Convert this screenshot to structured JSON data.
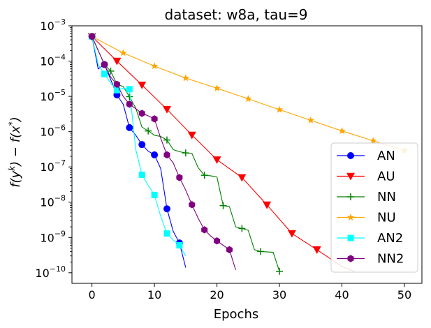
{
  "chart_data": {
    "type": "line",
    "title": "dataset: w8a, tau=9",
    "xlabel": "Epochs",
    "ylabel": "f(y^k) − f(x*)",
    "ylabel_parts": {
      "base": "f(y",
      "sup1": "k",
      "mid": ") − f(x",
      "sup2": "*",
      "end": ")"
    },
    "xlim": [
      -3.2,
      52.8
    ],
    "ylim_log10": [
      -10.3,
      -3.0
    ],
    "yscale": "log",
    "xticks": [
      0,
      10,
      20,
      30,
      40,
      50
    ],
    "xtick_labels": [
      "0",
      "10",
      "20",
      "30",
      "40",
      "50"
    ],
    "yticks_exp": [
      -10,
      -9,
      -8,
      -7,
      -6,
      -5,
      -4,
      -3
    ],
    "ytick_labels": [
      "10",
      "10",
      "10",
      "10",
      "10",
      "10",
      "10",
      "10"
    ],
    "ytick_exponents": [
      "−10",
      "−9",
      "−8",
      "−7",
      "−6",
      "−5",
      "−4",
      "−3"
    ],
    "legend_position": "lower right",
    "series": [
      {
        "name": "AN",
        "color": "#0000ff",
        "marker": "circle",
        "x": [
          0,
          1,
          2,
          3,
          4,
          5,
          6,
          7,
          8,
          9,
          10,
          11,
          12,
          13,
          14,
          15
        ],
        "y": [
          0.0005,
          6e-05,
          8e-05,
          3e-05,
          1.1e-05,
          6e-06,
          1.3e-06,
          8e-07,
          4.3e-07,
          2.8e-07,
          2.2e-07,
          9e-08,
          6.5e-09,
          1.5e-09,
          7e-10,
          1.4e-10
        ],
        "marker_idx": [
          0,
          2,
          4,
          6,
          8,
          10,
          12,
          14
        ]
      },
      {
        "name": "AU",
        "color": "#ff0000",
        "marker": "triangle-down",
        "x": [
          0,
          4,
          8,
          12,
          16,
          20,
          24,
          28,
          32,
          36,
          40,
          42
        ],
        "y": [
          0.0005,
          0.0001,
          2.1e-05,
          4.3e-06,
          8e-07,
          1.6e-07,
          5e-08,
          8.4e-09,
          1.3e-09,
          4.5e-10,
          1.5e-10,
          1.1e-10
        ],
        "marker_idx": [
          0,
          1,
          2,
          3,
          4,
          5,
          6,
          7,
          8,
          9
        ]
      },
      {
        "name": "NN",
        "color": "#008000",
        "marker": "plus",
        "x": [
          0,
          1,
          2,
          3,
          4,
          5,
          6,
          7,
          8,
          9,
          10,
          11,
          12,
          13,
          14,
          15,
          16,
          17,
          18,
          19,
          20,
          21,
          22,
          23,
          24,
          25,
          26,
          27,
          28,
          29,
          30
        ],
        "y": [
          0.0005,
          0.0002,
          8e-05,
          5.2e-05,
          2.2e-05,
          1.9e-05,
          9.8e-06,
          4.7e-06,
          1.35e-06,
          1.05e-06,
          7.9e-07,
          7.3e-07,
          5.8e-07,
          3.1e-07,
          2.7e-07,
          2.5e-07,
          2.4e-07,
          9.5e-08,
          5.8e-08,
          5.6e-08,
          5.2e-08,
          8e-09,
          7.5e-09,
          2e-09,
          1.8e-09,
          1.6e-09,
          4.5e-10,
          4e-10,
          3.9e-10,
          3.8e-10,
          1.1e-10
        ],
        "marker_idx": [
          0,
          3,
          6,
          9,
          12,
          15,
          18,
          21,
          24,
          27,
          30
        ]
      },
      {
        "name": "NU",
        "color": "#ffa500",
        "marker": "star",
        "x": [
          0,
          5,
          10,
          15,
          20,
          25,
          30,
          35,
          40,
          45,
          50
        ],
        "y": [
          0.0005,
          0.00017,
          7.2e-05,
          3.3e-05,
          1.7e-05,
          8.5e-06,
          4.2e-06,
          2.1e-06,
          1.05e-06,
          5.5e-07,
          2.9e-07
        ],
        "marker_idx": [
          0,
          1,
          2,
          3,
          4,
          5,
          6,
          7,
          8,
          9,
          10
        ]
      },
      {
        "name": "AN2",
        "color": "#00ffff",
        "marker": "square",
        "x": [
          0,
          1,
          2,
          3,
          4,
          5,
          6,
          7,
          8,
          9,
          10,
          11,
          12,
          13,
          14,
          15
        ],
        "y": [
          0.0005,
          8e-05,
          4.3e-05,
          2.4e-05,
          1.5e-05,
          1.7e-05,
          1.6e-05,
          3.2e-07,
          6e-08,
          3e-08,
          1.6e-08,
          4e-09,
          1.3e-09,
          8.5e-10,
          6e-10,
          3e-10
        ],
        "marker_idx": [
          0,
          2,
          4,
          6,
          8,
          10,
          12,
          14
        ]
      },
      {
        "name": "NN2",
        "color": "#800080",
        "marker": "hexagon",
        "x": [
          0,
          1,
          2,
          3,
          4,
          5,
          6,
          7,
          8,
          9,
          10,
          11,
          12,
          13,
          14,
          15,
          16,
          17,
          18,
          19,
          20,
          21,
          22,
          23
        ],
        "y": [
          0.0005,
          0.0002,
          8e-05,
          3.5e-05,
          2.2e-05,
          1e-05,
          6e-06,
          4.5e-06,
          3.3e-06,
          2.8e-06,
          2.3e-06,
          6.5e-07,
          2.2e-07,
          1.3e-07,
          5e-08,
          2.2e-08,
          8.5e-09,
          3.5e-09,
          1.65e-09,
          1.1e-09,
          8e-10,
          6e-10,
          4.5e-10,
          1.2e-10
        ],
        "marker_idx": [
          0,
          2,
          4,
          6,
          8,
          10,
          12,
          14,
          16,
          18,
          20,
          22
        ]
      }
    ]
  }
}
